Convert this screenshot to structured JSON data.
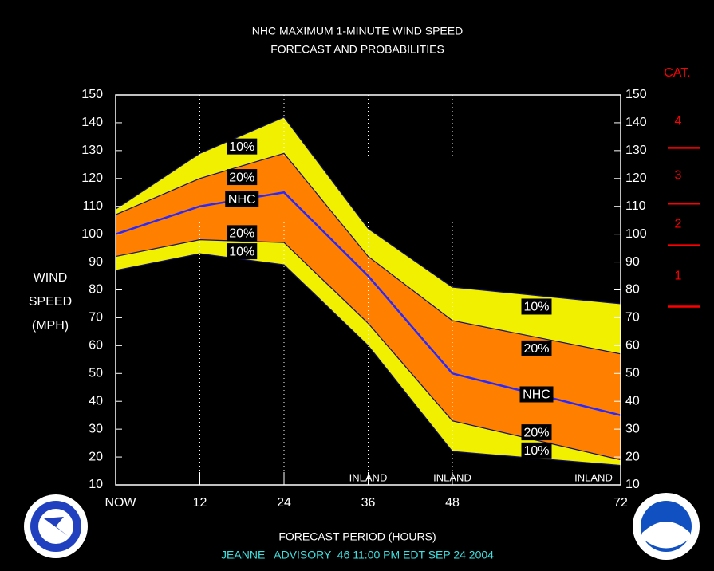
{
  "chart_data": {
    "type": "line",
    "title": [
      "NHC MAXIMUM 1-MINUTE WIND SPEED",
      "FORECAST AND PROBABILITIES"
    ],
    "y_label": [
      "WIND",
      "SPEED",
      "(MPH)"
    ],
    "x_label": "FORECAST PERIOD (HOURS)",
    "footer": "JEANNE   ADVISORY  46 11:00 PM EDT SEP 24 2004",
    "x": [
      0,
      12,
      24,
      36,
      48,
      72
    ],
    "xlim": [
      0,
      72
    ],
    "xticks": [
      {
        "value": 0,
        "label": "NOW"
      },
      12,
      24,
      36,
      48,
      72
    ],
    "ylim": [
      10,
      150
    ],
    "yticks": [
      10,
      20,
      30,
      40,
      50,
      60,
      70,
      80,
      90,
      100,
      110,
      120,
      130,
      140,
      150
    ],
    "series": [
      {
        "name": "10%",
        "color": "#101060",
        "fill": "#f0f000",
        "values": [
          109,
          129,
          142,
          102,
          81,
          75
        ]
      },
      {
        "name": "20%",
        "color": "#101060",
        "fill": "#ff8000",
        "values": [
          107,
          120,
          129,
          92,
          69,
          57
        ]
      },
      {
        "name": "NHC",
        "color": "#2828ff",
        "values": [
          100,
          110,
          115,
          85,
          50,
          35
        ]
      },
      {
        "name": "20%",
        "color": "#101060",
        "values": [
          92,
          98,
          97,
          68,
          33,
          19
        ]
      },
      {
        "name": "10%",
        "color": "#101060",
        "values": [
          87,
          93,
          89,
          60,
          22,
          17
        ]
      }
    ],
    "annotations": [
      {
        "x": 36,
        "text": "INLAND"
      },
      {
        "x": 48,
        "text": "INLAND"
      },
      {
        "x": 72,
        "text": "INLAND"
      }
    ],
    "category_scale": {
      "title": "CAT.",
      "color": "#ff0000",
      "boundaries": [
        74,
        96,
        111,
        131
      ],
      "labels": [
        "1",
        "2",
        "3",
        "4"
      ]
    }
  }
}
